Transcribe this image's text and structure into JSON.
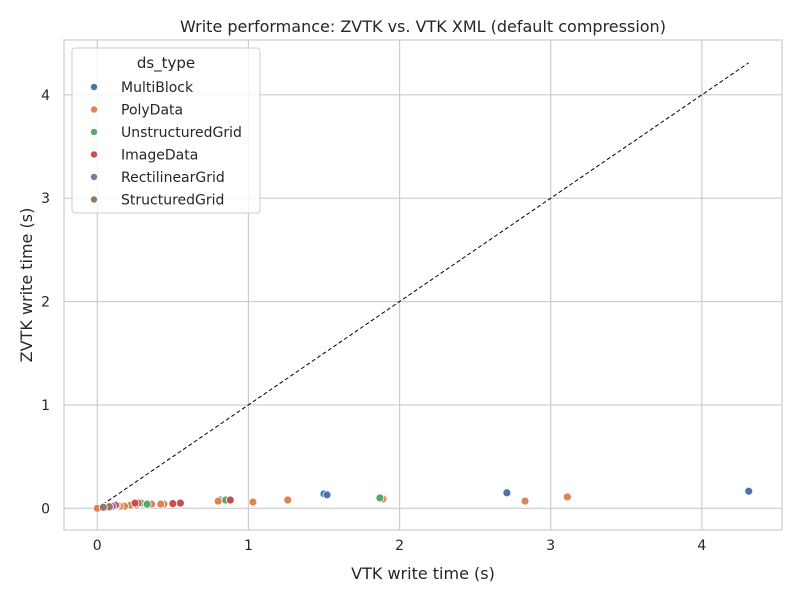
{
  "chart_data": {
    "type": "scatter",
    "title": "Write performance: ZVTK vs. VTK XML (default compression)",
    "xlabel": "VTK write time (s)",
    "ylabel": "ZVTK write time (s)",
    "xlim": [
      -0.22,
      4.53
    ],
    "ylim": [
      -0.21,
      4.53
    ],
    "xticks": [
      0,
      1,
      2,
      3,
      4
    ],
    "yticks": [
      0,
      1,
      2,
      3,
      4
    ],
    "grid": true,
    "legend": {
      "title": "ds_type",
      "placement": "top-left"
    },
    "reference_line": {
      "style": "dashed",
      "color": "#000000",
      "from": [
        0,
        0
      ],
      "to": [
        4.31,
        4.31
      ]
    },
    "series": [
      {
        "name": "MultiBlock",
        "color": "#4c72b0",
        "x": [
          4.31,
          2.71,
          1.5,
          1.52,
          0.81
        ],
        "y": [
          0.165,
          0.15,
          0.14,
          0.13,
          0.08
        ]
      },
      {
        "name": "PolyData",
        "color": "#dd8452",
        "x": [
          3.11,
          2.83,
          1.89,
          1.26,
          1.03,
          0.8,
          0.55,
          0.44,
          0.42,
          0.36,
          0.26,
          0.22,
          0.18,
          0.15,
          0.12,
          0.09,
          0.07,
          0.05,
          0.0
        ],
        "y": [
          0.11,
          0.07,
          0.09,
          0.08,
          0.06,
          0.07,
          0.04,
          0.04,
          0.04,
          0.04,
          0.03,
          0.03,
          0.02,
          0.02,
          0.02,
          0.02,
          0.01,
          0.01,
          0.0
        ]
      },
      {
        "name": "UnstructuredGrid",
        "color": "#55a868",
        "x": [
          1.87,
          0.85,
          0.29,
          0.33,
          0.13
        ],
        "y": [
          0.1,
          0.08,
          0.05,
          0.04,
          0.03
        ]
      },
      {
        "name": "ImageData",
        "color": "#c44e52",
        "x": [
          0.88,
          0.55,
          0.5,
          0.27,
          0.25,
          0.12
        ],
        "y": [
          0.08,
          0.05,
          0.045,
          0.05,
          0.05,
          0.03
        ]
      },
      {
        "name": "RectilinearGrid",
        "color": "#8172b3",
        "x": [
          0.1,
          0.06
        ],
        "y": [
          0.02,
          0.01
        ]
      },
      {
        "name": "StructuredGrid",
        "color": "#937860",
        "x": [
          0.08,
          0.04
        ],
        "y": [
          0.015,
          0.01
        ]
      }
    ]
  }
}
